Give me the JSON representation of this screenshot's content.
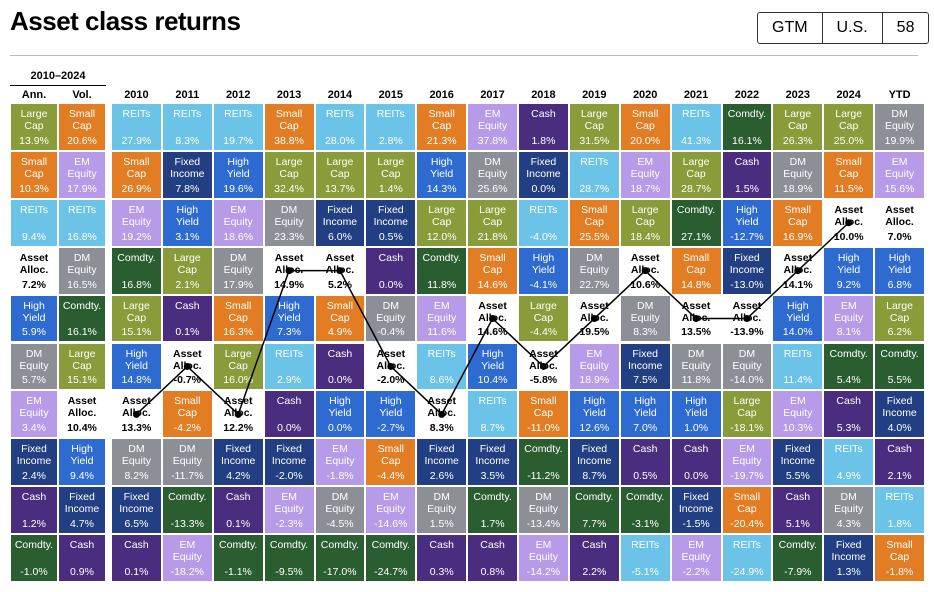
{
  "header": {
    "title": "Asset class returns",
    "badge": [
      "GTM",
      "U.S.",
      "58"
    ]
  },
  "colors": {
    "Large Cap": "#8a9b3a",
    "Small Cap": "#e27d24",
    "REITs": "#6cc3e8",
    "EM Equity": "#b79be8",
    "DM Equity": "#8c9096",
    "High Yield": "#2d6bd1",
    "Fixed Income": "#213f82",
    "Cash": "#4b2d7f",
    "Comdty.": "#2a5e31",
    "Asset Alloc.": "#ffffff"
  },
  "summary": {
    "title": "2010–2024",
    "columns": [
      {
        "header": "Ann.",
        "cells": [
          [
            "Large Cap",
            "13.9%"
          ],
          [
            "Small Cap",
            "10.3%"
          ],
          [
            "REITs",
            "9.4%"
          ],
          [
            "Asset Alloc.",
            "7.2%"
          ],
          [
            "High Yield",
            "5.9%"
          ],
          [
            "DM Equity",
            "5.7%"
          ],
          [
            "EM Equity",
            "3.4%"
          ],
          [
            "Fixed Income",
            "2.4%"
          ],
          [
            "Cash",
            "1.2%"
          ],
          [
            "Comdty.",
            "-1.0%"
          ]
        ]
      },
      {
        "header": "Vol.",
        "cells": [
          [
            "Small Cap",
            "20.6%"
          ],
          [
            "EM Equity",
            "17.9%"
          ],
          [
            "REITs",
            "16.8%"
          ],
          [
            "DM Equity",
            "16.5%"
          ],
          [
            "Comdty.",
            "16.1%"
          ],
          [
            "Large Cap",
            "15.1%"
          ],
          [
            "Asset Alloc.",
            "10.4%"
          ],
          [
            "High Yield",
            "9.4%"
          ],
          [
            "Fixed Income",
            "4.7%"
          ],
          [
            "Cash",
            "0.9%"
          ]
        ]
      }
    ]
  },
  "years": [
    {
      "header": "2010",
      "cells": [
        [
          "REITs",
          "27.9%"
        ],
        [
          "Small Cap",
          "26.9%"
        ],
        [
          "EM Equity",
          "19.2%"
        ],
        [
          "Comdty.",
          "16.8%"
        ],
        [
          "Large Cap",
          "15.1%"
        ],
        [
          "High Yield",
          "14.8%"
        ],
        [
          "Asset Alloc.",
          "13.3%"
        ],
        [
          "DM Equity",
          "8.2%"
        ],
        [
          "Fixed Income",
          "6.5%"
        ],
        [
          "Cash",
          "0.1%"
        ]
      ]
    },
    {
      "header": "2011",
      "cells": [
        [
          "REITs",
          "8.3%"
        ],
        [
          "Fixed Income",
          "7.8%"
        ],
        [
          "High Yield",
          "3.1%"
        ],
        [
          "Large Cap",
          "2.1%"
        ],
        [
          "Cash",
          "0.1%"
        ],
        [
          "Asset Alloc.",
          "-0.7%"
        ],
        [
          "Small Cap",
          "-4.2%"
        ],
        [
          "DM Equity",
          "-11.7%"
        ],
        [
          "Comdty.",
          "-13.3%"
        ],
        [
          "EM Equity",
          "-18.2%"
        ]
      ]
    },
    {
      "header": "2012",
      "cells": [
        [
          "REITs",
          "19.7%"
        ],
        [
          "High Yield",
          "19.6%"
        ],
        [
          "EM Equity",
          "18.6%"
        ],
        [
          "DM Equity",
          "17.9%"
        ],
        [
          "Small Cap",
          "16.3%"
        ],
        [
          "Large Cap",
          "16.0%"
        ],
        [
          "Asset Alloc.",
          "12.2%"
        ],
        [
          "Fixed Income",
          "4.2%"
        ],
        [
          "Cash",
          "0.1%"
        ],
        [
          "Comdty.",
          "-1.1%"
        ]
      ]
    },
    {
      "header": "2013",
      "cells": [
        [
          "Small Cap",
          "38.8%"
        ],
        [
          "Large Cap",
          "32.4%"
        ],
        [
          "DM Equity",
          "23.3%"
        ],
        [
          "Asset Alloc.",
          "14.9%"
        ],
        [
          "High Yield",
          "7.3%"
        ],
        [
          "REITs",
          "2.9%"
        ],
        [
          "Cash",
          "0.0%"
        ],
        [
          "Fixed Income",
          "-2.0%"
        ],
        [
          "EM Equity",
          "-2.3%"
        ],
        [
          "Comdty.",
          "-9.5%"
        ]
      ]
    },
    {
      "header": "2014",
      "cells": [
        [
          "REITs",
          "28.0%"
        ],
        [
          "Large Cap",
          "13.7%"
        ],
        [
          "Fixed Income",
          "6.0%"
        ],
        [
          "Asset Alloc.",
          "5.2%"
        ],
        [
          "Small Cap",
          "4.9%"
        ],
        [
          "Cash",
          "0.0%"
        ],
        [
          "High Yield",
          "0.0%"
        ],
        [
          "EM Equity",
          "-1.8%"
        ],
        [
          "DM Equity",
          "-4.5%"
        ],
        [
          "Comdty.",
          "-17.0%"
        ]
      ]
    },
    {
      "header": "2015",
      "cells": [
        [
          "REITs",
          "2.8%"
        ],
        [
          "Large Cap",
          "1.4%"
        ],
        [
          "Fixed Income",
          "0.5%"
        ],
        [
          "Cash",
          "0.0%"
        ],
        [
          "DM Equity",
          "-0.4%"
        ],
        [
          "Asset Alloc.",
          "-2.0%"
        ],
        [
          "High Yield",
          "-2.7%"
        ],
        [
          "Small Cap",
          "-4.4%"
        ],
        [
          "EM Equity",
          "-14.6%"
        ],
        [
          "Comdty.",
          "-24.7%"
        ]
      ]
    },
    {
      "header": "2016",
      "cells": [
        [
          "Small Cap",
          "21.3%"
        ],
        [
          "High Yield",
          "14.3%"
        ],
        [
          "Large Cap",
          "12.0%"
        ],
        [
          "Comdty.",
          "11.8%"
        ],
        [
          "EM Equity",
          "11.6%"
        ],
        [
          "REITs",
          "8.6%"
        ],
        [
          "Asset Alloc.",
          "8.3%"
        ],
        [
          "Fixed Income",
          "2.6%"
        ],
        [
          "DM Equity",
          "1.5%"
        ],
        [
          "Cash",
          "0.3%"
        ]
      ]
    },
    {
      "header": "2017",
      "cells": [
        [
          "EM Equity",
          "37.8%"
        ],
        [
          "DM Equity",
          "25.6%"
        ],
        [
          "Large Cap",
          "21.8%"
        ],
        [
          "Small Cap",
          "14.6%"
        ],
        [
          "Asset Alloc.",
          "14.6%"
        ],
        [
          "High Yield",
          "10.4%"
        ],
        [
          "REITs",
          "8.7%"
        ],
        [
          "Fixed Income",
          "3.5%"
        ],
        [
          "Comdty.",
          "1.7%"
        ],
        [
          "Cash",
          "0.8%"
        ]
      ]
    },
    {
      "header": "2018",
      "cells": [
        [
          "Cash",
          "1.8%"
        ],
        [
          "Fixed Income",
          "0.0%"
        ],
        [
          "REITs",
          "-4.0%"
        ],
        [
          "High Yield",
          "-4.1%"
        ],
        [
          "Large Cap",
          "-4.4%"
        ],
        [
          "Asset Alloc.",
          "-5.8%"
        ],
        [
          "Small Cap",
          "-11.0%"
        ],
        [
          "Comdty.",
          "-11.2%"
        ],
        [
          "DM Equity",
          "-13.4%"
        ],
        [
          "EM Equity",
          "-14.2%"
        ]
      ]
    },
    {
      "header": "2019",
      "cells": [
        [
          "Large Cap",
          "31.5%"
        ],
        [
          "REITs",
          "28.7%"
        ],
        [
          "Small Cap",
          "25.5%"
        ],
        [
          "DM Equity",
          "22.7%"
        ],
        [
          "Asset Alloc.",
          "19.5%"
        ],
        [
          "EM Equity",
          "18.9%"
        ],
        [
          "High Yield",
          "12.6%"
        ],
        [
          "Fixed Income",
          "8.7%"
        ],
        [
          "Comdty.",
          "7.7%"
        ],
        [
          "Cash",
          "2.2%"
        ]
      ]
    },
    {
      "header": "2020",
      "cells": [
        [
          "Small Cap",
          "20.0%"
        ],
        [
          "EM Equity",
          "18.7%"
        ],
        [
          "Large Cap",
          "18.4%"
        ],
        [
          "Asset Alloc.",
          "10.6%"
        ],
        [
          "DM Equity",
          "8.3%"
        ],
        [
          "Fixed Income",
          "7.5%"
        ],
        [
          "High Yield",
          "7.0%"
        ],
        [
          "Cash",
          "0.5%"
        ],
        [
          "Comdty.",
          "-3.1%"
        ],
        [
          "REITs",
          "-5.1%"
        ]
      ]
    },
    {
      "header": "2021",
      "cells": [
        [
          "REITs",
          "41.3%"
        ],
        [
          "Large Cap",
          "28.7%"
        ],
        [
          "Comdty.",
          "27.1%"
        ],
        [
          "Small Cap",
          "14.8%"
        ],
        [
          "Asset Alloc.",
          "13.5%"
        ],
        [
          "DM Equity",
          "11.8%"
        ],
        [
          "High Yield",
          "1.0%"
        ],
        [
          "Cash",
          "0.0%"
        ],
        [
          "Fixed Income",
          "-1.5%"
        ],
        [
          "EM Equity",
          "-2.2%"
        ]
      ]
    },
    {
      "header": "2022",
      "cells": [
        [
          "Comdty.",
          "16.1%"
        ],
        [
          "Cash",
          "1.5%"
        ],
        [
          "High Yield",
          "-12.7%"
        ],
        [
          "Fixed Income",
          "-13.0%"
        ],
        [
          "Asset Alloc.",
          "-13.9%"
        ],
        [
          "DM Equity",
          "-14.0%"
        ],
        [
          "Large Cap",
          "-18.1%"
        ],
        [
          "EM Equity",
          "-19.7%"
        ],
        [
          "Small Cap",
          "-20.4%"
        ],
        [
          "REITs",
          "-24.9%"
        ]
      ]
    },
    {
      "header": "2023",
      "cells": [
        [
          "Large Cap",
          "26.3%"
        ],
        [
          "DM Equity",
          "18.9%"
        ],
        [
          "Small Cap",
          "16.9%"
        ],
        [
          "Asset Alloc.",
          "14.1%"
        ],
        [
          "High Yield",
          "14.0%"
        ],
        [
          "REITs",
          "11.4%"
        ],
        [
          "EM Equity",
          "10.3%"
        ],
        [
          "Fixed Income",
          "5.5%"
        ],
        [
          "Cash",
          "5.1%"
        ],
        [
          "Comdty.",
          "-7.9%"
        ]
      ]
    },
    {
      "header": "2024",
      "cells": [
        [
          "Large Cap",
          "25.0%"
        ],
        [
          "Small Cap",
          "11.5%"
        ],
        [
          "Asset Alloc.",
          "10.0%"
        ],
        [
          "High Yield",
          "9.2%"
        ],
        [
          "EM Equity",
          "8.1%"
        ],
        [
          "Comdty.",
          "5.4%"
        ],
        [
          "Cash",
          "5.3%"
        ],
        [
          "REITs",
          "4.9%"
        ],
        [
          "DM Equity",
          "4.3%"
        ],
        [
          "Fixed Income",
          "1.3%"
        ]
      ]
    }
  ],
  "ytd": {
    "header": "YTD",
    "cells": [
      [
        "DM Equity",
        "19.9%"
      ],
      [
        "EM Equity",
        "15.6%"
      ],
      [
        "Asset Alloc.",
        "7.0%"
      ],
      [
        "High Yield",
        "6.8%"
      ],
      [
        "Large Cap",
        "6.2%"
      ],
      [
        "Comdty.",
        "5.5%"
      ],
      [
        "Fixed Income",
        "4.0%"
      ],
      [
        "Cash",
        "2.1%"
      ],
      [
        "REITs",
        "1.8%"
      ],
      [
        "Small Cap",
        "-1.8%"
      ]
    ]
  }
}
